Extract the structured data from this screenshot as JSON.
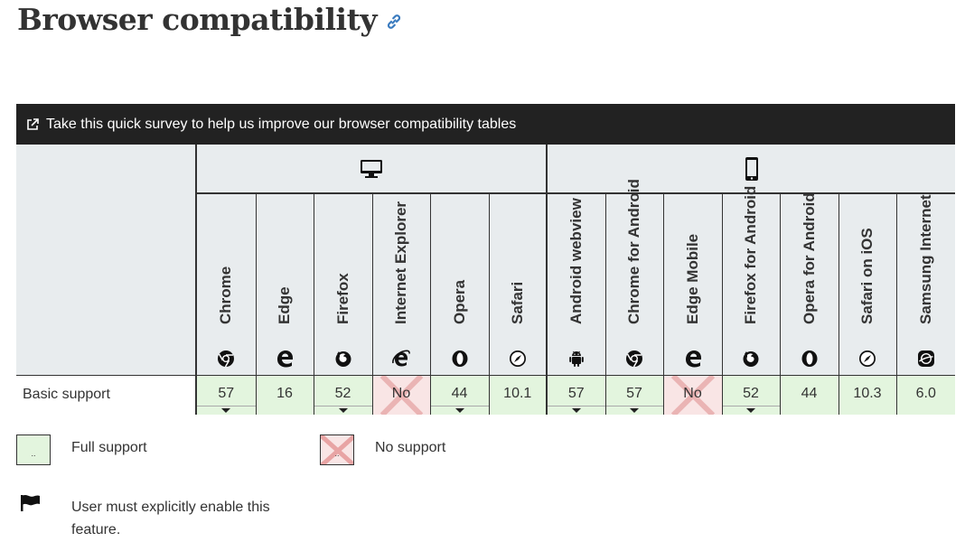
{
  "title": "Browser compatibility",
  "survey": {
    "text": "Take this quick survey to help us improve our browser compatibility tables"
  },
  "platforms": {
    "desktop": "desktop-icon",
    "mobile": "mobile-icon"
  },
  "browsers": [
    {
      "name": "Chrome",
      "icon": "chrome-icon",
      "group": "desktop"
    },
    {
      "name": "Edge",
      "icon": "edge-icon",
      "group": "desktop"
    },
    {
      "name": "Firefox",
      "icon": "firefox-icon",
      "group": "desktop"
    },
    {
      "name": "Internet Explorer",
      "icon": "ie-icon",
      "group": "desktop"
    },
    {
      "name": "Opera",
      "icon": "opera-icon",
      "group": "desktop"
    },
    {
      "name": "Safari",
      "icon": "safari-icon",
      "group": "desktop"
    },
    {
      "name": "Android webview",
      "icon": "android-icon",
      "group": "mobile"
    },
    {
      "name": "Chrome for Android",
      "icon": "chrome-icon",
      "group": "mobile"
    },
    {
      "name": "Edge Mobile",
      "icon": "edge-icon",
      "group": "mobile"
    },
    {
      "name": "Firefox for Android",
      "icon": "firefox-icon",
      "group": "mobile"
    },
    {
      "name": "Opera for Android",
      "icon": "opera-icon",
      "group": "mobile"
    },
    {
      "name": "Safari on iOS",
      "icon": "safari-icon",
      "group": "mobile"
    },
    {
      "name": "Samsung Internet",
      "icon": "samsung-icon",
      "group": "mobile"
    }
  ],
  "features": [
    {
      "name": "Basic support",
      "support": [
        {
          "value": "57",
          "status": "full",
          "expandable": true
        },
        {
          "value": "16",
          "status": "full",
          "expandable": false
        },
        {
          "value": "52",
          "status": "full",
          "expandable": true
        },
        {
          "value": "No",
          "status": "no",
          "expandable": false
        },
        {
          "value": "44",
          "status": "full",
          "expandable": true
        },
        {
          "value": "10.1",
          "status": "full",
          "expandable": false
        },
        {
          "value": "57",
          "status": "full",
          "expandable": true
        },
        {
          "value": "57",
          "status": "full",
          "expandable": true
        },
        {
          "value": "No",
          "status": "no",
          "expandable": false
        },
        {
          "value": "52",
          "status": "full",
          "expandable": true
        },
        {
          "value": "44",
          "status": "full",
          "expandable": false
        },
        {
          "value": "10.3",
          "status": "full",
          "expandable": false
        },
        {
          "value": "6.0",
          "status": "full",
          "expandable": false
        }
      ]
    }
  ],
  "legend": {
    "full": {
      "label": "Full support",
      "box_text": ".."
    },
    "no": {
      "label": "No support",
      "box_text": ".."
    },
    "flag": {
      "label": "User must explicitly enable this feature.",
      "icon": "flag-icon"
    }
  },
  "colors": {
    "full": "#e3f5de",
    "no": "#f9e5e5",
    "header": "#e8ecee",
    "survey_bg": "#222222",
    "link": "#3a7bbf"
  }
}
